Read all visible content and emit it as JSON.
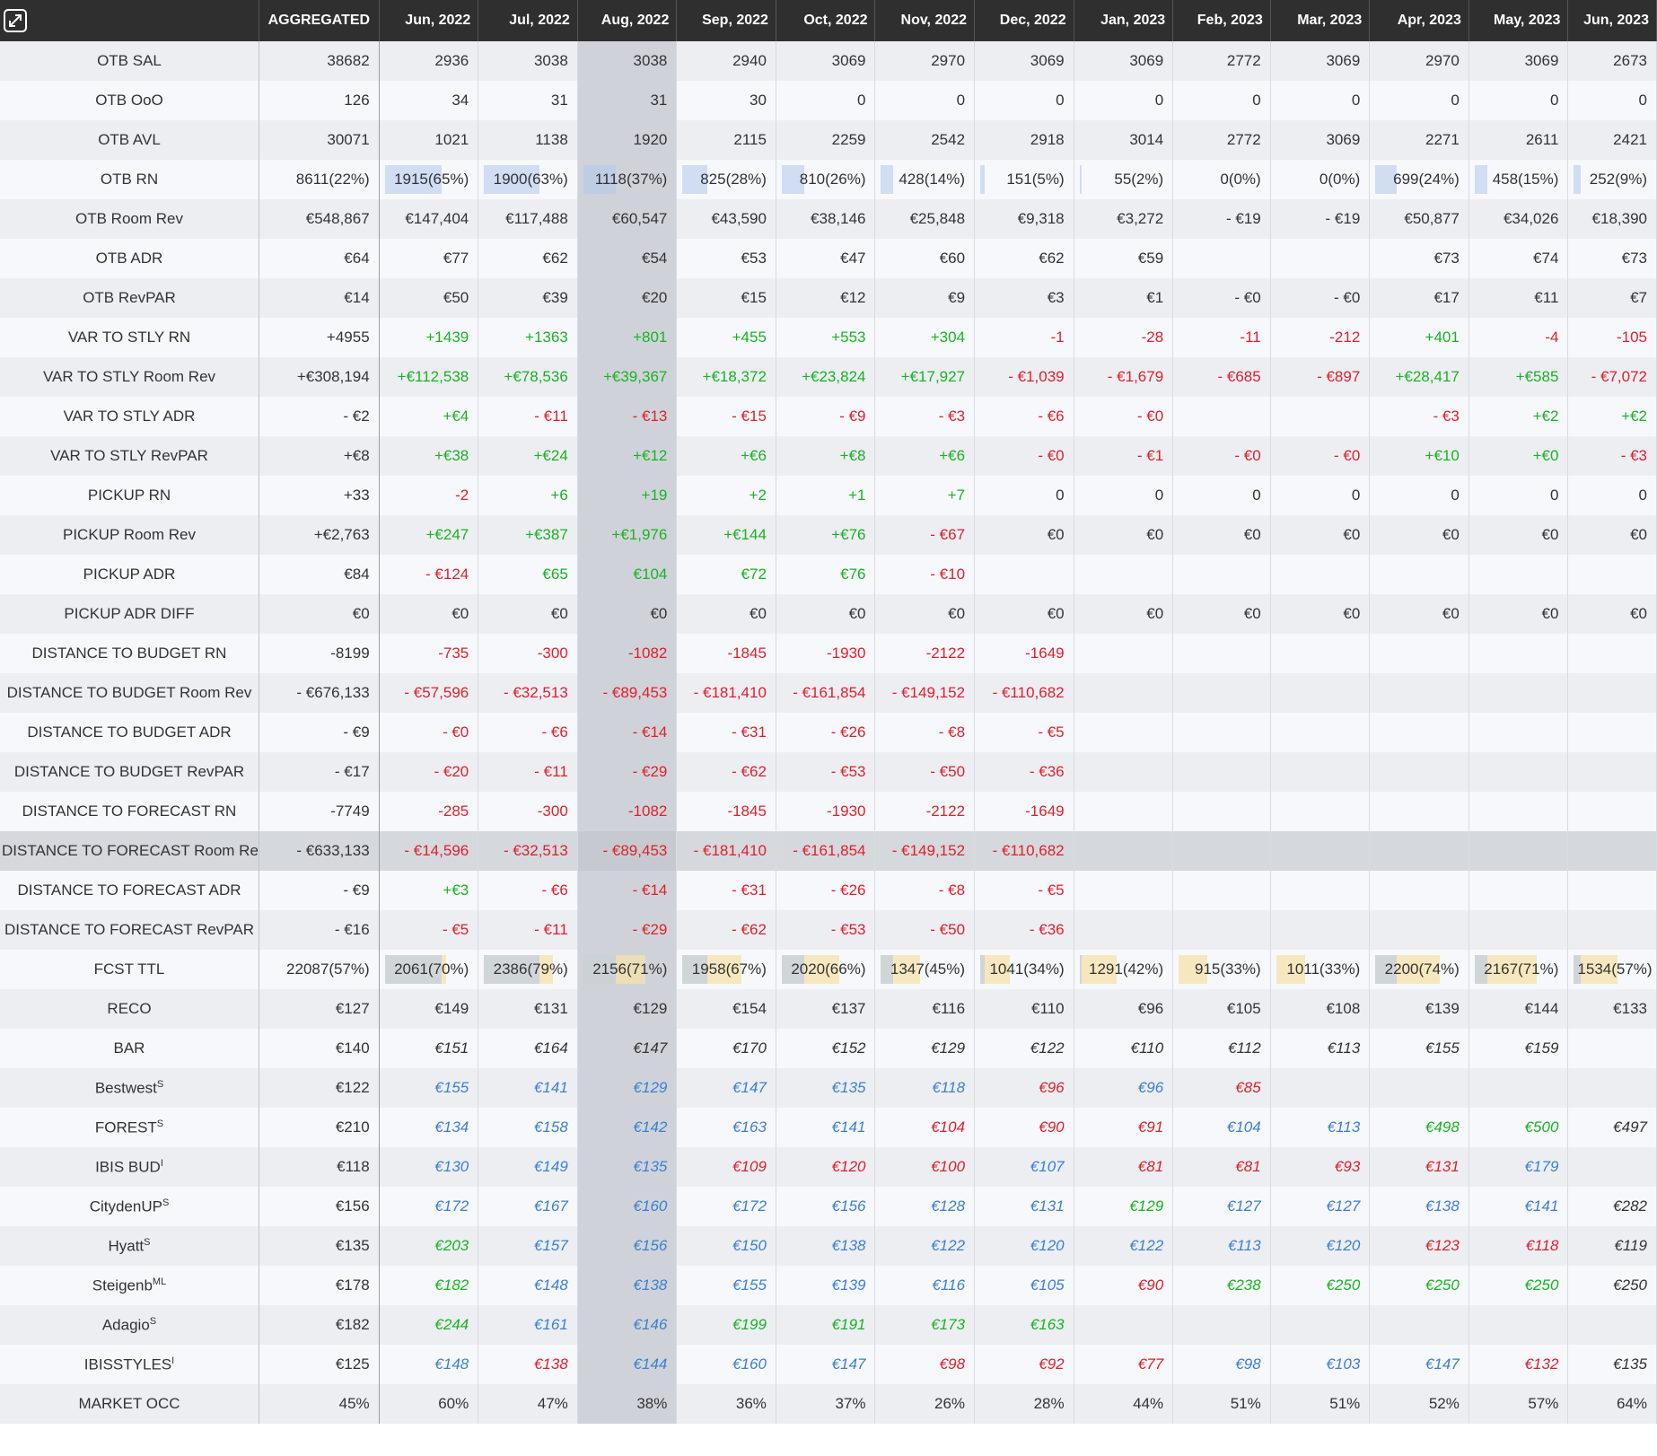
{
  "header": {
    "corner_icon": "expand-icon",
    "aggregated_label": "AGGREGATED",
    "months": [
      "Jun, 2022",
      "Jul, 2022",
      "Aug, 2022",
      "Sep, 2022",
      "Oct, 2022",
      "Nov, 2022",
      "Dec, 2022",
      "Jan, 2023",
      "Feb, 2023",
      "Mar, 2023",
      "Apr, 2023",
      "May, 2023",
      "Jun, 2023"
    ]
  },
  "selected_month_index": 2,
  "colors": {
    "header_bg": "#2f2f2f",
    "positive": "#19b324",
    "negative": "#e0202b",
    "competitor_blue": "#3c7fd1",
    "otb_bar": "#b0c6ec",
    "forecast_bar": "#f6e2aa"
  },
  "rows": [
    {
      "label": "OTB SAL",
      "agg": "38682",
      "cells": [
        "2936",
        "3038",
        "3038",
        "2940",
        "3069",
        "2970",
        "3069",
        "3069",
        "2772",
        "3069",
        "2970",
        "3069",
        "2673"
      ]
    },
    {
      "label": "OTB OoO",
      "agg": "126",
      "cells": [
        "34",
        "31",
        "31",
        "30",
        "0",
        "0",
        "0",
        "0",
        "0",
        "0",
        "0",
        "0",
        "0"
      ]
    },
    {
      "label": "OTB AVL",
      "agg": "30071",
      "cells": [
        "1021",
        "1138",
        "1920",
        "2115",
        "2259",
        "2542",
        "2918",
        "3014",
        "2772",
        "3069",
        "2271",
        "2611",
        "2421"
      ]
    },
    {
      "label": "OTB RN",
      "agg": "8611(22%)",
      "bar": "otb",
      "cells": [
        "1915(65%)",
        "1900(63%)",
        "1118(37%)",
        "825(28%)",
        "810(26%)",
        "428(14%)",
        "151(5%)",
        "55(2%)",
        "0(0%)",
        "0(0%)",
        "699(24%)",
        "458(15%)",
        "252(9%)"
      ],
      "fill": [
        0.65,
        0.63,
        0.37,
        0.28,
        0.26,
        0.14,
        0.05,
        0.02,
        0,
        0,
        0.24,
        0.15,
        0.09
      ]
    },
    {
      "label": "OTB Room Rev",
      "agg": "€548,867",
      "cells": [
        "€147,404",
        "€117,488",
        "€60,547",
        "€43,590",
        "€38,146",
        "€25,848",
        "€9,318",
        "€3,272",
        "- €19",
        "- €19",
        "€50,877",
        "€34,026",
        "€18,390"
      ]
    },
    {
      "label": "OTB ADR",
      "agg": "€64",
      "cells": [
        "€77",
        "€62",
        "€54",
        "€53",
        "€47",
        "€60",
        "€62",
        "€59",
        "",
        "",
        "€73",
        "€74",
        "€73"
      ]
    },
    {
      "label": "OTB RevPAR",
      "agg": "€14",
      "cells": [
        "€50",
        "€39",
        "€20",
        "€15",
        "€12",
        "€9",
        "€3",
        "€1",
        "- €0",
        "- €0",
        "€17",
        "€11",
        "€7"
      ]
    },
    {
      "label": "VAR TO STLY RN",
      "agg": "+4955",
      "signed": true,
      "cells": [
        "+1439",
        "+1363",
        "+801",
        "+455",
        "+553",
        "+304",
        "-1",
        "-28",
        "-11",
        "-212",
        "+401",
        "-4",
        "-105"
      ]
    },
    {
      "label": "VAR TO STLY Room Rev",
      "agg": "+€308,194",
      "signed": true,
      "cells": [
        "+€112,538",
        "+€78,536",
        "+€39,367",
        "+€18,372",
        "+€23,824",
        "+€17,927",
        "- €1,039",
        "- €1,679",
        "- €685",
        "- €897",
        "+€28,417",
        "+€585",
        "- €7,072"
      ]
    },
    {
      "label": "VAR TO STLY ADR",
      "agg": "- €2",
      "signed": true,
      "cells": [
        "+€4",
        "- €11",
        "- €13",
        "- €15",
        "- €9",
        "- €3",
        "- €6",
        "- €0",
        "",
        "",
        "- €3",
        "+€2",
        "+€2"
      ]
    },
    {
      "label": "VAR TO STLY RevPAR",
      "agg": "+€8",
      "signed": true,
      "cells": [
        "+€38",
        "+€24",
        "+€12",
        "+€6",
        "+€8",
        "+€6",
        "- €0",
        "- €1",
        "- €0",
        "- €0",
        "+€10",
        "+€0",
        "- €3"
      ]
    },
    {
      "label": "PICKUP RN",
      "agg": "+33",
      "signed": true,
      "cells": [
        "-2",
        "+6",
        "+19",
        "+2",
        "+1",
        "+7",
        "0",
        "0",
        "0",
        "0",
        "0",
        "0",
        "0"
      ]
    },
    {
      "label": "PICKUP Room Rev",
      "agg": "+€2,763",
      "signed": true,
      "cells": [
        "+€247",
        "+€387",
        "+€1,976",
        "+€144",
        "+€76",
        "- €67",
        "€0",
        "€0",
        "€0",
        "€0",
        "€0",
        "€0",
        "€0"
      ]
    },
    {
      "label": "PICKUP ADR",
      "agg": "€84",
      "signed": true,
      "cellclass": [
        "neg",
        "pos",
        "pos",
        "pos",
        "pos",
        "neg",
        "",
        "",
        "",
        "",
        "",
        "",
        ""
      ],
      "cells": [
        "- €124",
        "€65",
        "€104",
        "€72",
        "€76",
        "- €10",
        "",
        "",
        "",
        "",
        "",
        "",
        ""
      ]
    },
    {
      "label": "PICKUP ADR DIFF",
      "agg": "€0",
      "cells": [
        "€0",
        "€0",
        "€0",
        "€0",
        "€0",
        "€0",
        "€0",
        "€0",
        "€0",
        "€0",
        "€0",
        "€0",
        "€0"
      ]
    },
    {
      "label": "DISTANCE TO BUDGET RN",
      "agg": "-8199",
      "signed": true,
      "cells": [
        "-735",
        "-300",
        "-1082",
        "-1845",
        "-1930",
        "-2122",
        "-1649",
        "",
        "",
        "",
        "",
        "",
        ""
      ]
    },
    {
      "label": "DISTANCE TO BUDGET Room Rev",
      "agg": "- €676,133",
      "signed": true,
      "cells": [
        "- €57,596",
        "- €32,513",
        "- €89,453",
        "- €181,410",
        "- €161,854",
        "- €149,152",
        "- €110,682",
        "",
        "",
        "",
        "",
        "",
        ""
      ]
    },
    {
      "label": "DISTANCE TO BUDGET ADR",
      "agg": "- €9",
      "signed": true,
      "cells": [
        "- €0",
        "- €6",
        "- €14",
        "- €31",
        "- €26",
        "- €8",
        "- €5",
        "",
        "",
        "",
        "",
        "",
        ""
      ]
    },
    {
      "label": "DISTANCE TO BUDGET RevPAR",
      "agg": "- €17",
      "signed": true,
      "cells": [
        "- €20",
        "- €11",
        "- €29",
        "- €62",
        "- €53",
        "- €50",
        "- €36",
        "",
        "",
        "",
        "",
        "",
        ""
      ]
    },
    {
      "label": "DISTANCE TO FORECAST RN",
      "agg": "-7749",
      "signed": true,
      "cells": [
        "-285",
        "-300",
        "-1082",
        "-1845",
        "-1930",
        "-2122",
        "-1649",
        "",
        "",
        "",
        "",
        "",
        ""
      ]
    },
    {
      "label": "DISTANCE TO FORECAST Room Rev",
      "agg": "- €633,133",
      "signed": true,
      "highlight": true,
      "cells": [
        "- €14,596",
        "- €32,513",
        "- €89,453",
        "- €181,410",
        "- €161,854",
        "- €149,152",
        "- €110,682",
        "",
        "",
        "",
        "",
        "",
        ""
      ]
    },
    {
      "label": "DISTANCE TO FORECAST ADR",
      "agg": "- €9",
      "signed": true,
      "cells": [
        "+€3",
        "- €6",
        "- €14",
        "- €31",
        "- €26",
        "- €8",
        "- €5",
        "",
        "",
        "",
        "",
        "",
        ""
      ]
    },
    {
      "label": "DISTANCE TO FORECAST RevPAR",
      "agg": "- €16",
      "signed": true,
      "cells": [
        "- €5",
        "- €11",
        "- €29",
        "- €62",
        "- €53",
        "- €50",
        "- €36",
        "",
        "",
        "",
        "",
        "",
        ""
      ]
    },
    {
      "label": "FCST TTL",
      "agg": "22087(57%)",
      "bar": "fcst",
      "cells": [
        "2061(70%)",
        "2386(79%)",
        "2156(71%)",
        "1958(67%)",
        "2020(66%)",
        "1347(45%)",
        "1041(34%)",
        "1291(42%)",
        "915(33%)",
        "1011(33%)",
        "2200(74%)",
        "2167(71%)",
        "1534(57%)"
      ],
      "fill": [
        0.7,
        0.79,
        0.71,
        0.67,
        0.66,
        0.45,
        0.34,
        0.42,
        0.33,
        0.33,
        0.74,
        0.71,
        0.57
      ],
      "otbfill": [
        0.65,
        0.63,
        0.37,
        0.28,
        0.26,
        0.14,
        0.05,
        0.02,
        0,
        0,
        0.24,
        0.15,
        0.09
      ]
    },
    {
      "label": "RECO",
      "agg": "€127",
      "cells": [
        "€149",
        "€131",
        "€129",
        "€154",
        "€137",
        "€116",
        "€110",
        "€96",
        "€105",
        "€108",
        "€139",
        "€144",
        "€133"
      ]
    },
    {
      "label": "BAR",
      "agg": "€140",
      "italic": true,
      "cells": [
        "€151",
        "€164",
        "€147",
        "€170",
        "€152",
        "€129",
        "€122",
        "€110",
        "€112",
        "€113",
        "€155",
        "€159",
        ""
      ]
    },
    {
      "label": "Bestwest",
      "sup": "S",
      "agg": "€122",
      "italic": true,
      "cellclass": [
        "blue",
        "blue",
        "blue",
        "blue",
        "blue",
        "blue",
        "neg",
        "blue",
        "neg",
        "",
        "",
        "",
        ""
      ],
      "cells": [
        "€155",
        "€141",
        "€129",
        "€147",
        "€135",
        "€118",
        "€96",
        "€96",
        "€85",
        "",
        "",
        "",
        ""
      ]
    },
    {
      "label": "FOREST",
      "sup": "S",
      "agg": "€210",
      "italic": true,
      "cellclass": [
        "blue",
        "blue",
        "blue",
        "blue",
        "blue",
        "neg",
        "neg",
        "neg",
        "blue",
        "blue",
        "pos",
        "pos",
        ""
      ],
      "cells": [
        "€134",
        "€158",
        "€142",
        "€163",
        "€141",
        "€104",
        "€90",
        "€91",
        "€104",
        "€113",
        "€498",
        "€500",
        "€497"
      ]
    },
    {
      "label": "IBIS BUD",
      "sup": "I",
      "agg": "€118",
      "italic": true,
      "cellclass": [
        "blue",
        "blue",
        "blue",
        "neg",
        "neg",
        "neg",
        "blue",
        "neg",
        "neg",
        "neg",
        "neg",
        "blue",
        ""
      ],
      "cells": [
        "€130",
        "€149",
        "€135",
        "€109",
        "€120",
        "€100",
        "€107",
        "€81",
        "€81",
        "€93",
        "€131",
        "€179",
        ""
      ]
    },
    {
      "label": "CitydenUP",
      "sup": "S",
      "agg": "€156",
      "italic": true,
      "cellclass": [
        "blue",
        "blue",
        "blue",
        "blue",
        "blue",
        "blue",
        "blue",
        "pos",
        "blue",
        "blue",
        "blue",
        "blue",
        ""
      ],
      "cells": [
        "€172",
        "€167",
        "€160",
        "€172",
        "€156",
        "€128",
        "€131",
        "€129",
        "€127",
        "€127",
        "€138",
        "€141",
        "€282"
      ]
    },
    {
      "label": "Hyatt",
      "sup": "S",
      "agg": "€135",
      "italic": true,
      "cellclass": [
        "pos",
        "blue",
        "blue",
        "blue",
        "blue",
        "blue",
        "blue",
        "blue",
        "blue",
        "blue",
        "neg",
        "neg",
        ""
      ],
      "cells": [
        "€203",
        "€157",
        "€156",
        "€150",
        "€138",
        "€122",
        "€120",
        "€122",
        "€113",
        "€120",
        "€123",
        "€118",
        "€119"
      ]
    },
    {
      "label": "Steigenb",
      "sup": "ML",
      "agg": "€178",
      "italic": true,
      "cellclass": [
        "pos",
        "blue",
        "blue",
        "blue",
        "blue",
        "blue",
        "blue",
        "neg",
        "pos",
        "pos",
        "pos",
        "pos",
        ""
      ],
      "cells": [
        "€182",
        "€148",
        "€138",
        "€155",
        "€139",
        "€116",
        "€105",
        "€90",
        "€238",
        "€250",
        "€250",
        "€250",
        "€250"
      ]
    },
    {
      "label": "Adagio",
      "sup": "S",
      "agg": "€182",
      "italic": true,
      "cellclass": [
        "pos",
        "blue",
        "blue",
        "pos",
        "pos",
        "pos",
        "pos",
        "",
        "",
        "",
        "",
        "",
        ""
      ],
      "cells": [
        "€244",
        "€161",
        "€146",
        "€199",
        "€191",
        "€173",
        "€163",
        "",
        "",
        "",
        "",
        "",
        ""
      ]
    },
    {
      "label": "IBISSTYLES",
      "sup": "I",
      "agg": "€125",
      "italic": true,
      "cellclass": [
        "blue",
        "neg",
        "blue",
        "blue",
        "blue",
        "neg",
        "neg",
        "neg",
        "blue",
        "blue",
        "blue",
        "neg",
        ""
      ],
      "cells": [
        "€148",
        "€138",
        "€144",
        "€160",
        "€147",
        "€98",
        "€92",
        "€77",
        "€98",
        "€103",
        "€147",
        "€132",
        "€135"
      ]
    },
    {
      "label": "MARKET OCC",
      "agg": "45%",
      "cells": [
        "60%",
        "47%",
        "38%",
        "36%",
        "37%",
        "26%",
        "28%",
        "44%",
        "51%",
        "51%",
        "52%",
        "57%",
        "64%"
      ]
    }
  ]
}
